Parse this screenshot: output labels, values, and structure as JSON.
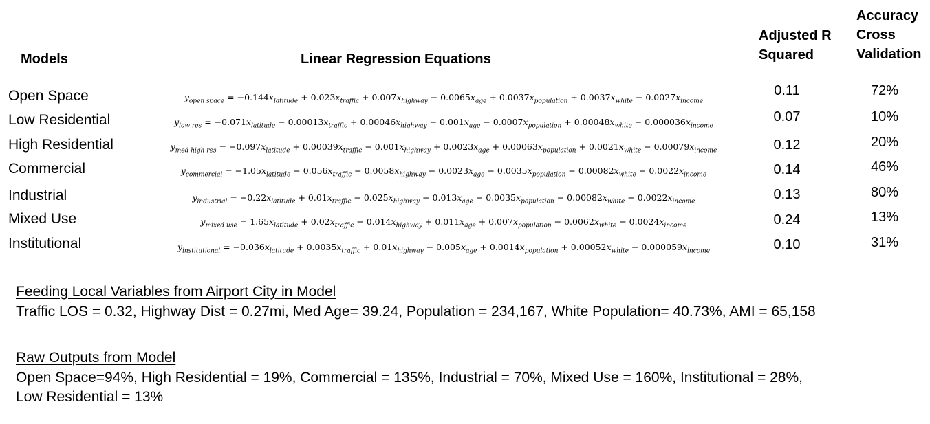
{
  "headers": {
    "models": "Models",
    "equations": "Linear Regression Equations",
    "r2_line1": "Adjusted R",
    "r2_line2": "Squared",
    "acc_line1": "Accuracy",
    "acc_line2": "Cross",
    "acc_line3": "Validation"
  },
  "rows": [
    {
      "model": "Open Space",
      "eq_sub": "open space",
      "terms": "= −0.144x<sub>latitude</sub> + 0.023x<sub>traffic</sub> + 0.007x<sub>highway</sub> − 0.0065x<sub>age</sub> + 0.0037x<sub>population</sub> + 0.0037x<sub>white</sub> − 0.0027x<sub>income</sub>",
      "r2": "0.11",
      "acc": "72%"
    },
    {
      "model": "Low Residential",
      "eq_sub": "low res",
      "terms": "= −0.071x<sub>latitude</sub> − 0.00013x<sub>traffic</sub> + 0.00046x<sub>highway</sub> − 0.001x<sub>age</sub> − 0.0007x<sub>population</sub> + 0.00048x<sub>white</sub> − 0.000036x<sub>income</sub>",
      "r2": "0.07",
      "acc": "10%"
    },
    {
      "model": "High Residential",
      "eq_sub": "med high res",
      "terms": "= −0.097x<sub>latitude</sub> + 0.00039x<sub>traffic</sub> − 0.001x<sub>highway</sub> + 0.0023x<sub>age</sub> + 0.00063x<sub>population</sub> + 0.0021x<sub>white</sub> − 0.00079x<sub>income</sub>",
      "r2": "0.12",
      "acc": "20%"
    },
    {
      "model": "Commercial",
      "eq_sub": "commercial",
      "terms": "= −1.05x<sub>latitude</sub> − 0.056x<sub>traffic</sub> − 0.0058x<sub>highway</sub> − 0.0023x<sub>age</sub> − 0.0035x<sub>population</sub> − 0.00082x<sub>white</sub> − 0.0022x<sub>income</sub>",
      "r2": "0.14",
      "acc": "46%"
    },
    {
      "model": "Industrial",
      "eq_sub": "industrial",
      "terms": "= −0.22x<sub>latitude</sub> + 0.01x<sub>traffic</sub> − 0.025x<sub>highway</sub> − 0.013x<sub>age</sub> − 0.0035x<sub>population</sub> − 0.00082x<sub>white</sub> + 0.0022x<sub>income</sub>",
      "r2": "0.13",
      "acc": "80%"
    },
    {
      "model": "Mixed Use",
      "eq_sub": "mixed use",
      "terms": "= 1.65x<sub>latitude</sub> + 0.02x<sub>traffic</sub> + 0.014x<sub>highway</sub> + 0.011x<sub>age</sub> + 0.007x<sub>population</sub> − 0.0062x<sub>white</sub> + 0.0024x<sub>income</sub>",
      "r2": "0.24",
      "acc": "13%"
    },
    {
      "model": "Institutional",
      "eq_sub": "institutional",
      "terms": "= −0.036x<sub>latitude</sub> + 0.0035x<sub>traffic</sub> + 0.01x<sub>highway</sub> − 0.005x<sub>age</sub> + 0.0014x<sub>population</sub> + 0.00052x<sub>white</sub> − 0.000059x<sub>income</sub>",
      "r2": "0.10",
      "acc": "31%"
    }
  ],
  "feeding": {
    "title": "Feeding Local Variables from Airport City in Model",
    "body": "Traffic LOS = 0.32, Highway Dist = 0.27mi, Med Age= 39.24, Population = 234,167, White Population= 40.73%, AMI = 65,158"
  },
  "raw": {
    "title": "Raw Outputs from Model",
    "line1": "Open Space=94%, High Residential = 19%, Commercial = 135%, Industrial = 70%, Mixed Use = 160%, Institutional = 28%,",
    "line2": "Low Residential = 13%"
  }
}
